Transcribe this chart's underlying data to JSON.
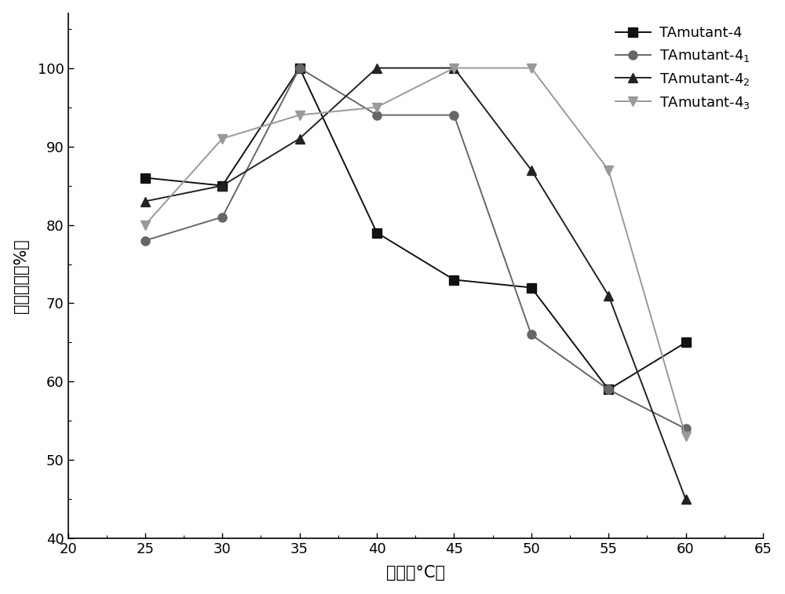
{
  "x": [
    25,
    30,
    35,
    40,
    45,
    50,
    55,
    60
  ],
  "series": [
    {
      "label": "TAmutant-4",
      "label_sub": "",
      "y": [
        86,
        85,
        100,
        79,
        73,
        72,
        59,
        65
      ],
      "color": "#111111",
      "marker": "s",
      "markersize": 8,
      "linestyle": "-"
    },
    {
      "label": "TAmutant-4",
      "label_sub": "1",
      "y": [
        78,
        81,
        100,
        94,
        94,
        66,
        59,
        54
      ],
      "color": "#666666",
      "marker": "o",
      "markersize": 8,
      "linestyle": "-"
    },
    {
      "label": "TAmutant-4",
      "label_sub": "2",
      "y": [
        83,
        85,
        91,
        100,
        100,
        87,
        71,
        45
      ],
      "color": "#222222",
      "marker": "^",
      "markersize": 8,
      "linestyle": "-"
    },
    {
      "label": "TAmutant-4",
      "label_sub": "3",
      "y": [
        80,
        91,
        94,
        95,
        100,
        100,
        87,
        53
      ],
      "color": "#999999",
      "marker": "v",
      "markersize": 8,
      "linestyle": "-"
    }
  ],
  "xlabel": "温度（°C）",
  "ylabel": "相对酶活（%）",
  "xlim": [
    20,
    65
  ],
  "ylim": [
    40,
    107
  ],
  "xticks": [
    20,
    25,
    30,
    35,
    40,
    45,
    50,
    55,
    60,
    65
  ],
  "yticks": [
    40,
    50,
    60,
    70,
    80,
    90,
    100
  ],
  "legend_fontsize": 13,
  "axis_label_fontsize": 15,
  "tick_fontsize": 13,
  "linewidth": 1.4,
  "background_color": "#ffffff"
}
